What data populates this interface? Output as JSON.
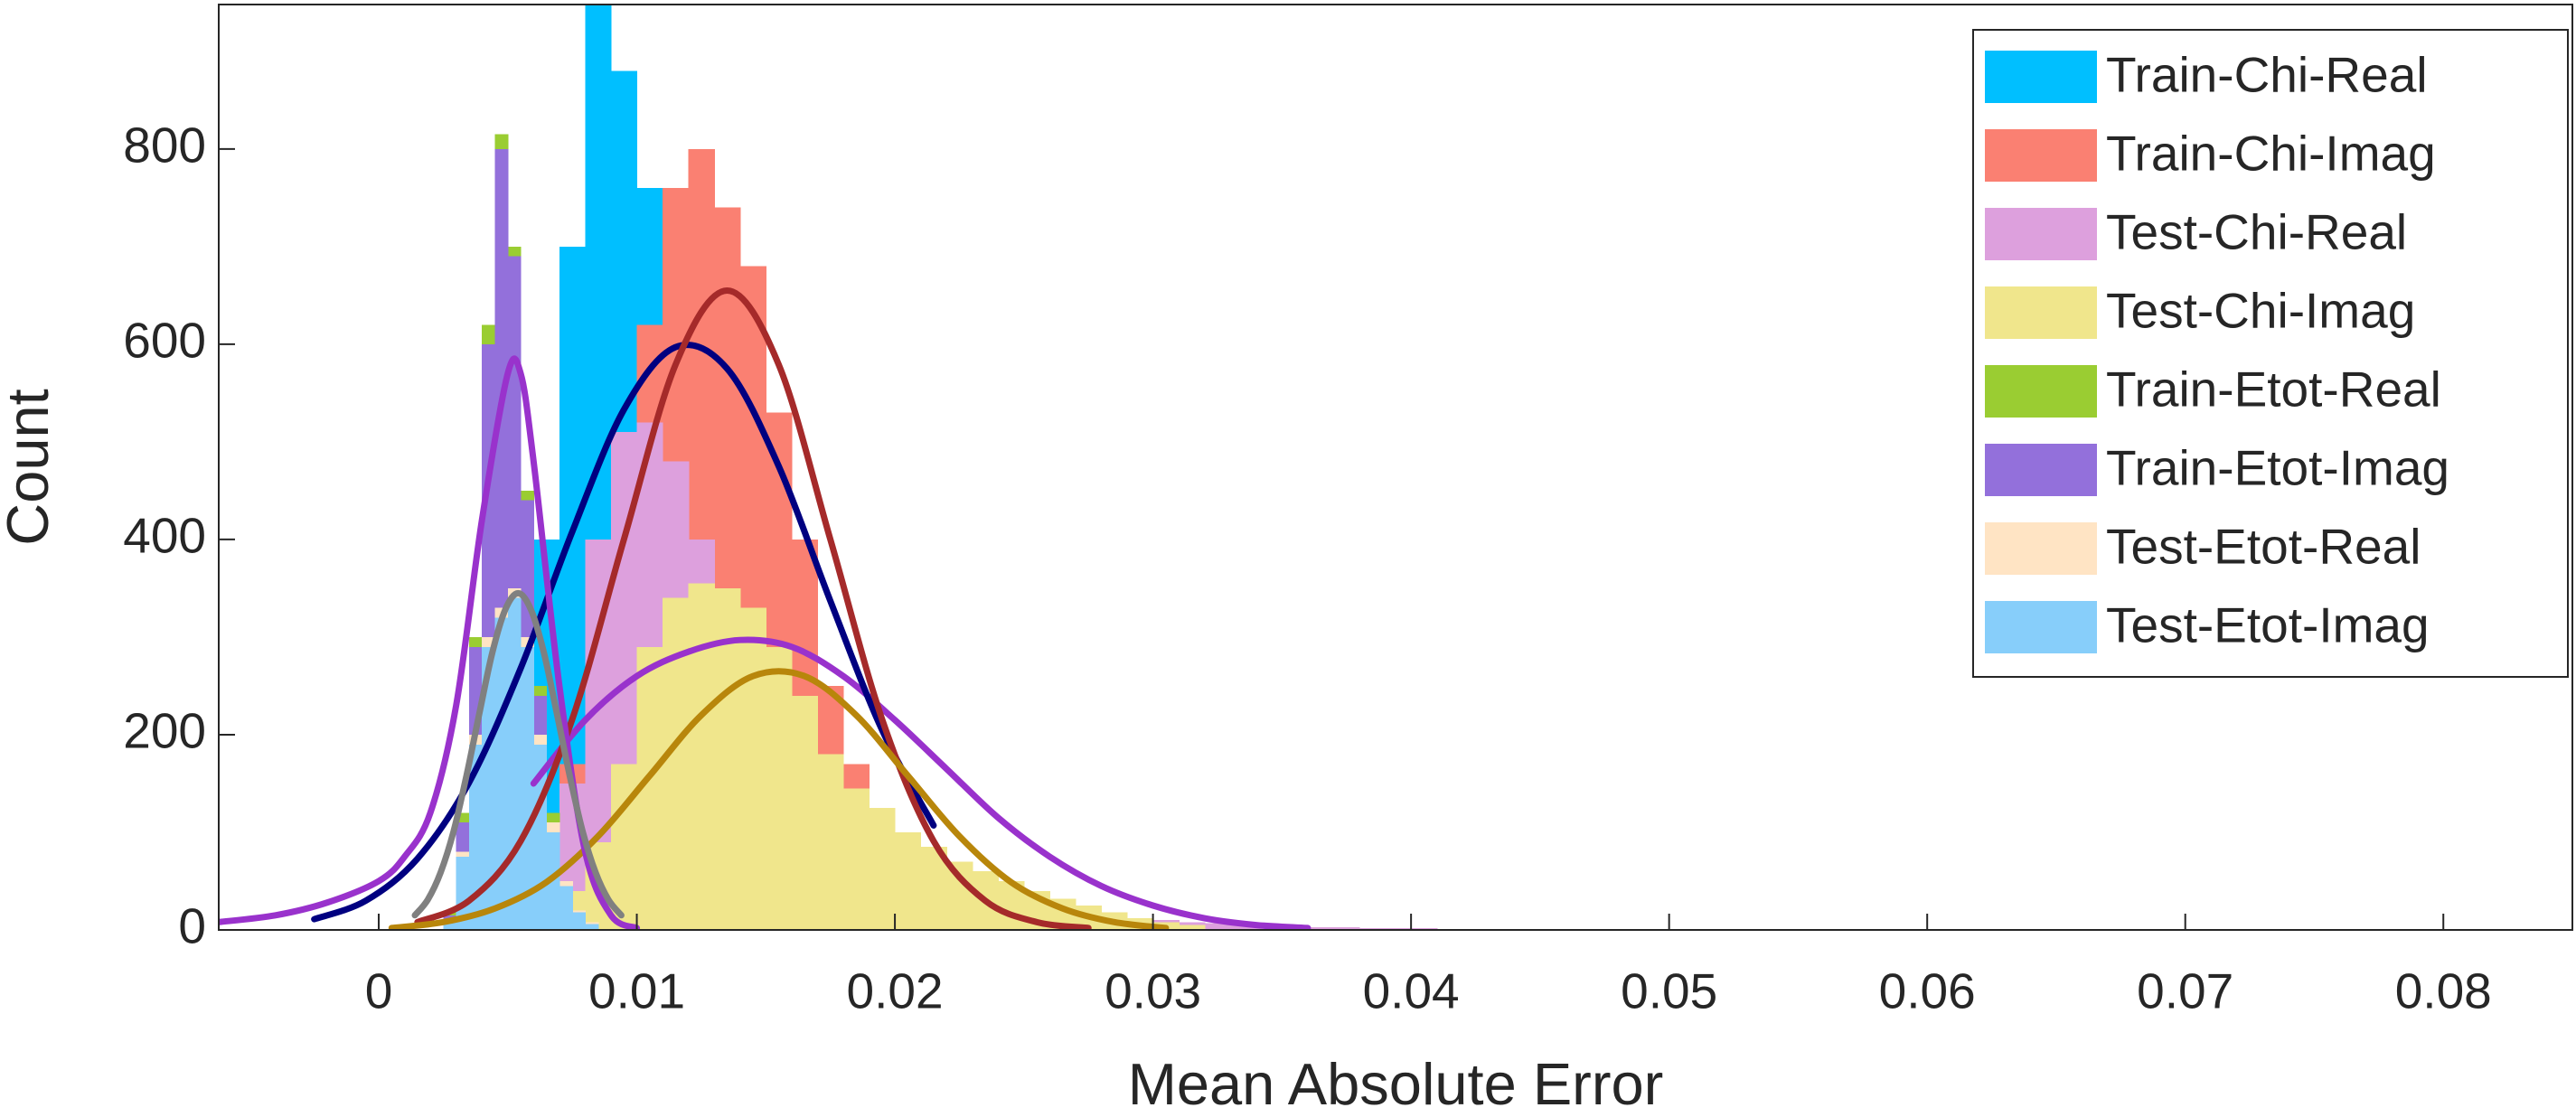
{
  "chart_data": {
    "type": "histogram",
    "xlabel": "Mean Absolute Error",
    "ylabel": "Count",
    "xlim": [
      -0.0062,
      0.085
    ],
    "ylim": [
      0,
      948
    ],
    "xticks": [
      0,
      0.01,
      0.02,
      0.03,
      0.04,
      0.05,
      0.06,
      0.07,
      0.08
    ],
    "yticks": [
      0,
      200,
      400,
      600,
      800
    ],
    "grid": false,
    "legend": "upper right",
    "series": [
      {
        "name": "Train-Chi-Real",
        "color": "#00bfff",
        "bins": [
          0.003,
          0.004,
          0.005,
          0.006,
          0.007,
          0.008,
          0.009,
          0.01,
          0.011,
          0.012,
          0.013,
          0.014,
          0.015,
          0.016,
          0.017,
          0.018,
          0.019,
          0.02,
          0.021,
          0.022,
          0.023,
          0.024,
          0.025
        ],
        "values": [
          15,
          60,
          180,
          400,
          700,
          960,
          880,
          760,
          650,
          540,
          470,
          420,
          330,
          260,
          180,
          120,
          80,
          50,
          30,
          18,
          10,
          5
        ]
      },
      {
        "name": "Train-Chi-Imag",
        "color": "#fa8072",
        "bins": [
          0.004,
          0.005,
          0.006,
          0.007,
          0.008,
          0.009,
          0.01,
          0.011,
          0.012,
          0.013,
          0.014,
          0.015,
          0.016,
          0.017,
          0.018,
          0.019,
          0.02,
          0.021,
          0.022,
          0.023,
          0.024,
          0.025,
          0.026
        ],
        "values": [
          10,
          30,
          80,
          170,
          300,
          470,
          620,
          760,
          800,
          740,
          680,
          530,
          400,
          250,
          170,
          110,
          70,
          45,
          28,
          16,
          8,
          4
        ]
      },
      {
        "name": "Test-Chi-Real",
        "color": "#dda0dd",
        "bins": [
          0.004,
          0.005,
          0.006,
          0.007,
          0.008,
          0.009,
          0.01,
          0.011,
          0.012,
          0.013,
          0.014,
          0.015,
          0.016,
          0.017,
          0.018,
          0.019,
          0.02,
          0.021,
          0.022,
          0.023,
          0.024,
          0.025,
          0.026,
          0.027,
          0.028,
          0.029,
          0.03,
          0.031,
          0.032,
          0.033,
          0.034,
          0.035,
          0.036,
          0.037,
          0.038,
          0.039,
          0.04,
          0.041,
          0.042,
          0.043,
          0.044,
          0.045,
          0.046,
          0.047,
          0.048
        ],
        "values": [
          5,
          20,
          60,
          150,
          400,
          510,
          520,
          480,
          400,
          350,
          300,
          260,
          220,
          180,
          140,
          110,
          90,
          75,
          60,
          48,
          38,
          30,
          24,
          19,
          15,
          12,
          10,
          8,
          7,
          6,
          5,
          4,
          3,
          3,
          2,
          2,
          2,
          1,
          1,
          1,
          1,
          1,
          1,
          1
        ]
      },
      {
        "name": "Test-Chi-Imag",
        "color": "#f0e68c",
        "bins": [
          0.007,
          0.008,
          0.009,
          0.01,
          0.011,
          0.012,
          0.013,
          0.014,
          0.015,
          0.016,
          0.017,
          0.018,
          0.019,
          0.02,
          0.021,
          0.022,
          0.023,
          0.024,
          0.025,
          0.026,
          0.027,
          0.028,
          0.029,
          0.03,
          0.031,
          0.032
        ],
        "values": [
          40,
          90,
          170,
          290,
          340,
          355,
          350,
          330,
          290,
          240,
          180,
          145,
          125,
          100,
          85,
          70,
          60,
          50,
          40,
          32,
          25,
          18,
          12,
          8,
          5
        ]
      },
      {
        "name": "Train-Etot-Real",
        "color": "#9acd32",
        "bins": [
          0.0025,
          0.003,
          0.0035,
          0.004,
          0.0045,
          0.005,
          0.0055,
          0.006,
          0.0065,
          0.007,
          0.0075,
          0.008,
          0.0085
        ],
        "values": [
          20,
          120,
          300,
          620,
          815,
          700,
          450,
          250,
          120,
          50,
          20,
          8
        ]
      },
      {
        "name": "Train-Etot-Imag",
        "color": "#9370db",
        "bins": [
          0.0025,
          0.003,
          0.0035,
          0.004,
          0.0045,
          0.005,
          0.0055,
          0.006,
          0.0065,
          0.007,
          0.0075,
          0.008,
          0.0085
        ],
        "values": [
          15,
          110,
          290,
          600,
          800,
          690,
          440,
          240,
          110,
          45,
          18,
          6
        ]
      },
      {
        "name": "Test-Etot-Real",
        "color": "#ffe4c4",
        "bins": [
          0.0025,
          0.003,
          0.0035,
          0.004,
          0.0045,
          0.005,
          0.0055,
          0.006,
          0.0065,
          0.007,
          0.0075,
          0.008,
          0.0085
        ],
        "values": [
          10,
          80,
          200,
          300,
          330,
          350,
          300,
          200,
          110,
          50,
          20,
          8
        ]
      },
      {
        "name": "Test-Etot-Imag",
        "color": "#87cefa",
        "bins": [
          0.0025,
          0.003,
          0.0035,
          0.004,
          0.0045,
          0.005,
          0.0055,
          0.006,
          0.0065,
          0.007,
          0.0075,
          0.008,
          0.0085
        ],
        "values": [
          10,
          75,
          190,
          290,
          320,
          340,
          290,
          190,
          100,
          45,
          18,
          6
        ]
      }
    ],
    "fits": [
      {
        "color": "#9932cc",
        "x": [
          0.006,
          0.008,
          0.01,
          0.012,
          0.014,
          0.016,
          0.018,
          0.02,
          0.022,
          0.024,
          0.026,
          0.028,
          0.03,
          0.032,
          0.034,
          0.036
        ],
        "values": [
          150,
          215,
          260,
          285,
          297,
          290,
          260,
          215,
          165,
          115,
          75,
          45,
          25,
          12,
          5,
          2
        ]
      },
      {
        "color": "#000080",
        "x": [
          -0.0025,
          -0.0005,
          0.0015,
          0.0035,
          0.0055,
          0.0075,
          0.0095,
          0.0115,
          0.0135,
          0.0155,
          0.0175,
          0.0195,
          0.0215
        ],
        "values": [
          11,
          30,
          73,
          151,
          268,
          408,
          533,
          597,
          575,
          475,
          337,
          205,
          107
        ]
      },
      {
        "color": "#a52a2a",
        "x": [
          0.0015,
          0.0035,
          0.0055,
          0.0075,
          0.0095,
          0.0115,
          0.0135,
          0.0155,
          0.0175,
          0.0195,
          0.0215,
          0.0235,
          0.0255,
          0.0275
        ],
        "values": [
          8,
          30,
          91,
          216,
          400,
          579,
          655,
          579,
          400,
          216,
          91,
          30,
          8,
          2
        ]
      },
      {
        "color": "#b8860b",
        "x": [
          0.0005,
          0.0025,
          0.0045,
          0.0065,
          0.0085,
          0.0105,
          0.0125,
          0.0145,
          0.0165,
          0.0185,
          0.0205,
          0.0225,
          0.0245,
          0.0265,
          0.0285,
          0.0305
        ],
        "values": [
          2,
          8,
          22,
          49,
          96,
          158,
          220,
          260,
          260,
          220,
          158,
          96,
          49,
          22,
          8,
          2
        ]
      },
      {
        "color": "#9932cc",
        "x": [
          -0.0062,
          -0.004,
          -0.002,
          0,
          0.001,
          0.002,
          0.003,
          0.004,
          0.005,
          0.0055,
          0.006,
          0.007,
          0.008,
          0.009,
          0.01
        ],
        "values": [
          8,
          15,
          28,
          50,
          75,
          120,
          230,
          420,
          570,
          570,
          480,
          250,
          80,
          15,
          2
        ]
      },
      {
        "color": "#808080",
        "x": [
          0.0014,
          0.0019,
          0.0024,
          0.0029,
          0.0034,
          0.0039,
          0.0044,
          0.0049,
          0.0054,
          0.0059,
          0.0064,
          0.0069,
          0.0074,
          0.0079,
          0.0084,
          0.0089,
          0.0094
        ],
        "values": [
          15,
          31,
          59,
          101,
          158,
          222,
          284,
          328,
          345,
          328,
          284,
          222,
          158,
          101,
          59,
          31,
          15
        ]
      }
    ]
  }
}
